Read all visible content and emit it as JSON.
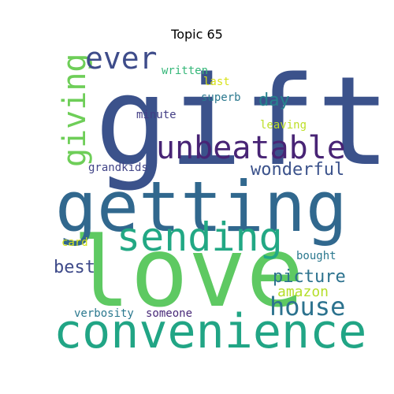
{
  "figure": {
    "title": "Topic 65"
  },
  "words": [
    {
      "text": "gift",
      "color": "#3b528b"
    },
    {
      "text": "love",
      "color": "#5ec962"
    },
    {
      "text": "getting",
      "color": "#31688e"
    },
    {
      "text": "convenience",
      "color": "#21a585"
    },
    {
      "text": "sending",
      "color": "#22a884"
    },
    {
      "text": "unbeatable",
      "color": "#482475"
    },
    {
      "text": "giving",
      "color": "#6ece58"
    },
    {
      "text": "ever",
      "color": "#3e4c8a"
    },
    {
      "text": "house",
      "color": "#2c728e"
    },
    {
      "text": "wonderful",
      "color": "#3b528b"
    },
    {
      "text": "picture",
      "color": "#2c728e"
    },
    {
      "text": "best",
      "color": "#3e4a89"
    },
    {
      "text": "day",
      "color": "#26828e"
    },
    {
      "text": "amazon",
      "color": "#b5de2b"
    },
    {
      "text": "written",
      "color": "#35b779"
    },
    {
      "text": "last",
      "color": "#d8e219"
    },
    {
      "text": "superb",
      "color": "#2a788e"
    },
    {
      "text": "minute",
      "color": "#433e85"
    },
    {
      "text": "leaving",
      "color": "#bddf26"
    },
    {
      "text": "grandkids",
      "color": "#414487"
    },
    {
      "text": "card",
      "color": "#d0e11c"
    },
    {
      "text": "bought",
      "color": "#2a788e"
    },
    {
      "text": "verbosity",
      "color": "#2a788e"
    },
    {
      "text": "someone",
      "color": "#482878"
    }
  ]
}
